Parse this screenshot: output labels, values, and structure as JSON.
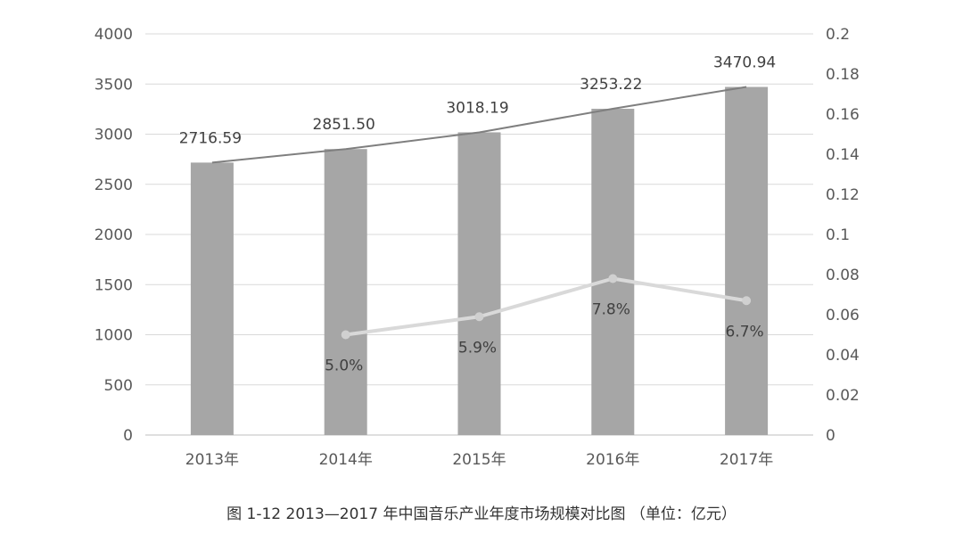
{
  "chart_data": {
    "type": "bar",
    "categories": [
      "2013年",
      "2014年",
      "2015年",
      "2016年",
      "2017年"
    ],
    "series": [
      {
        "type": "bar",
        "axis": "left",
        "values": [
          2716.59,
          2851.5,
          3018.19,
          3253.22,
          3470.94
        ],
        "labels": [
          "2716.59",
          "2851.50",
          "3018.19",
          "3253.22",
          "3470.94"
        ]
      },
      {
        "type": "line",
        "axis": "left",
        "values": [
          2716.59,
          2851.5,
          3018.19,
          3253.22,
          3470.94
        ]
      },
      {
        "type": "line",
        "axis": "right",
        "values": [
          null,
          0.05,
          0.059,
          0.078,
          0.067
        ],
        "labels": [
          null,
          "5.0%",
          "5.9%",
          "7.8%",
          "6.7%"
        ]
      }
    ],
    "y_left": {
      "ylim": [
        0,
        4000
      ],
      "ticks": [
        "0",
        "500",
        "1000",
        "1500",
        "2000",
        "2500",
        "3000",
        "3500",
        "4000"
      ]
    },
    "y_right": {
      "ylim": [
        0,
        0.2
      ],
      "ticks": [
        "0",
        "0.02",
        "0.04",
        "0.06",
        "0.08",
        "0.1",
        "0.12",
        "0.14",
        "0.16",
        "0.18",
        "0.2"
      ]
    },
    "grid": true,
    "legend": "none",
    "colors": {
      "bar": "#a6a6a6",
      "trend": "#7f7f7f",
      "growth": "#d9d9d9",
      "grid": "#d9d9d9"
    }
  },
  "caption": "图 1-12  2013—2017 年中国音乐产业年度市场规模对比图  （单位：亿元）"
}
